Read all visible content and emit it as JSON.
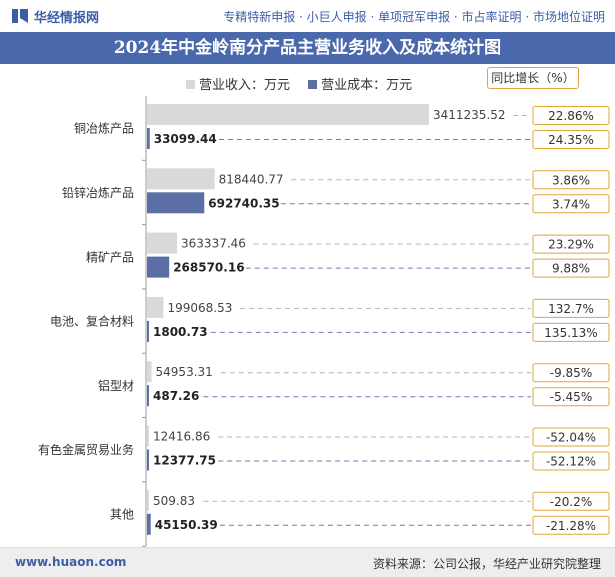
{
  "header": {
    "site_name": "华经情报网",
    "nav": "专精特新申报 · 小巨人申报 · 单项冠军申报 · 市占率证明 · 市场地位证明"
  },
  "footer": {
    "url": "www.huaon.com",
    "source": "资料来源：公司公报，华经产业研究院整理"
  },
  "chart_data": {
    "type": "bar",
    "orientation": "horizontal",
    "title": "2024年中金岭南分产品主营业务收入及成本统计图",
    "unit": "万元",
    "categories": [
      "铜冶炼产品",
      "铅锌冶炼产品",
      "精矿产品",
      "电池、复合材料",
      "铝型材",
      "有色金属贸易业务",
      "其他"
    ],
    "series": [
      {
        "name": "营业收入：万元",
        "color": "#d9d9d9",
        "values": [
          3411235.52,
          818440.77,
          363337.46,
          199068.53,
          54953.31,
          12416.86,
          509.83
        ],
        "labels": [
          "3411235.52",
          "818440.77",
          "363337.46",
          "199068.53",
          "54953.31",
          "12416.86",
          "509.83"
        ]
      },
      {
        "name": "营业成本：万元",
        "color": "#5b6fa6",
        "values": [
          33099.44,
          692740.35,
          268570.16,
          1800.73,
          487.26,
          12377.75,
          45150.39
        ],
        "labels": [
          "33099.44",
          "692740.35",
          "268570.16",
          "1800.73",
          "487.26",
          "12377.75",
          "45150.39"
        ]
      }
    ],
    "yoy_title": "同比增长（%）",
    "yoy": [
      [
        "22.86%",
        "24.35%"
      ],
      [
        "3.86%",
        "3.74%"
      ],
      [
        "23.29%",
        "9.88%"
      ],
      [
        "132.7%",
        "135.13%"
      ],
      [
        "-9.85%",
        "-5.45%"
      ],
      [
        "-52.04%",
        "-52.12%"
      ],
      [
        "-20.2%",
        "-21.28%"
      ]
    ],
    "xlim": [
      0,
      3411235.52
    ]
  }
}
